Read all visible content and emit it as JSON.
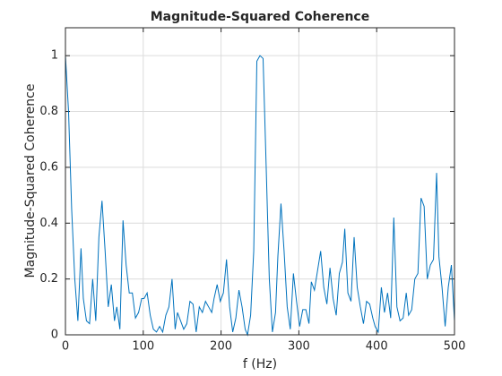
{
  "chart_data": {
    "type": "line",
    "title": "Magnitude-Squared Coherence",
    "xlabel": "f (Hz)",
    "ylabel": "Magnitude-Squared Coherence",
    "xlim": [
      0,
      500
    ],
    "ylim": [
      0,
      1.1
    ],
    "xticks": [
      0,
      100,
      200,
      300,
      400,
      500
    ],
    "yticks": [
      0,
      0.2,
      0.4,
      0.6,
      0.8,
      1
    ],
    "grid": true,
    "x": [
      0,
      4,
      8,
      12,
      16,
      20,
      23,
      27,
      31,
      35,
      39,
      43,
      47,
      51,
      55,
      59,
      63,
      66,
      70,
      74,
      78,
      82,
      86,
      90,
      94,
      98,
      101,
      105,
      109,
      113,
      117,
      121,
      125,
      129,
      133,
      137,
      141,
      144,
      148,
      152,
      156,
      160,
      164,
      168,
      172,
      176,
      180,
      184,
      188,
      191,
      195,
      199,
      203,
      207,
      211,
      215,
      219,
      223,
      227,
      231,
      234,
      238,
      242,
      246,
      250,
      254,
      258,
      262,
      266,
      270,
      273,
      277,
      281,
      285,
      289,
      293,
      297,
      301,
      305,
      309,
      313,
      316,
      320,
      324,
      328,
      332,
      336,
      340,
      344,
      348,
      352,
      356,
      359,
      363,
      367,
      371,
      375,
      379,
      383,
      387,
      391,
      395,
      398,
      402,
      406,
      410,
      414,
      418,
      422,
      426,
      430,
      434,
      438,
      441,
      445,
      449,
      453,
      457,
      461,
      465,
      469,
      473,
      477,
      480,
      484,
      488,
      492,
      496,
      500
    ],
    "series": [
      {
        "color": "#0072bd",
        "values": [
          1.0,
          0.8,
          0.45,
          0.2,
          0.05,
          0.31,
          0.13,
          0.05,
          0.04,
          0.2,
          0.05,
          0.35,
          0.48,
          0.3,
          0.1,
          0.18,
          0.05,
          0.1,
          0.02,
          0.41,
          0.25,
          0.15,
          0.15,
          0.06,
          0.08,
          0.13,
          0.13,
          0.15,
          0.07,
          0.02,
          0.01,
          0.03,
          0.01,
          0.07,
          0.1,
          0.2,
          0.02,
          0.08,
          0.05,
          0.02,
          0.04,
          0.12,
          0.11,
          0.01,
          0.1,
          0.08,
          0.12,
          0.1,
          0.08,
          0.13,
          0.18,
          0.12,
          0.15,
          0.27,
          0.1,
          0.01,
          0.06,
          0.16,
          0.1,
          0.02,
          0.0,
          0.07,
          0.3,
          0.98,
          1.0,
          0.99,
          0.6,
          0.2,
          0.01,
          0.08,
          0.28,
          0.47,
          0.3,
          0.1,
          0.02,
          0.22,
          0.12,
          0.03,
          0.09,
          0.09,
          0.04,
          0.19,
          0.16,
          0.23,
          0.3,
          0.17,
          0.11,
          0.24,
          0.13,
          0.07,
          0.22,
          0.26,
          0.38,
          0.15,
          0.12,
          0.35,
          0.17,
          0.1,
          0.04,
          0.12,
          0.11,
          0.06,
          0.03,
          0.01,
          0.17,
          0.08,
          0.15,
          0.06,
          0.42,
          0.1,
          0.05,
          0.06,
          0.15,
          0.07,
          0.09,
          0.2,
          0.22,
          0.49,
          0.46,
          0.2,
          0.25,
          0.27,
          0.58,
          0.28,
          0.17,
          0.03,
          0.17,
          0.25,
          0.05
        ]
      }
    ]
  }
}
